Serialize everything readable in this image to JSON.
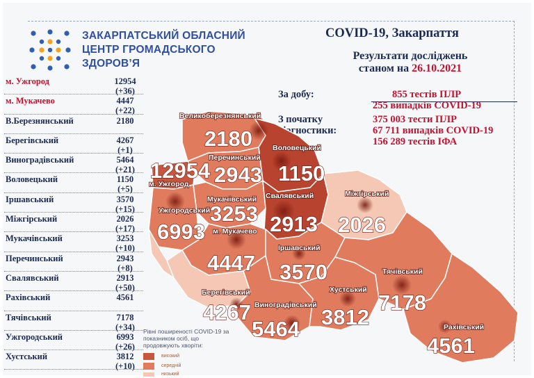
{
  "header": {
    "org_line1": "ЗАКАРПАТСЬКИЙ ОБЛАСНИЙ",
    "org_line2": "ЦЕНТР ГРОМАДСЬКОГО",
    "org_line3": "ЗДОРОВ’Я",
    "title": "COVID-19, Закарпаття",
    "subtitle_line1": "Результати досліджень",
    "subtitle_line2_prefix": "станом на",
    "date": "26.10.2021"
  },
  "districts_list": [
    {
      "name": "м. Ужгород",
      "value": "12954",
      "delta": "(+36)",
      "color": "#c8102e"
    },
    {
      "name": "м. Мукачево",
      "value": "4447",
      "delta": "(+22)",
      "color": "#c8102e"
    },
    {
      "name": "В.Березнянський",
      "value": "2180",
      "delta": "",
      "color": "#1b2a52"
    },
    {
      "name": "Берегівський",
      "value": "4267",
      "delta": "(+1)",
      "color": "#1b2a52"
    },
    {
      "name": "Виноградівський",
      "value": "5464",
      "delta": "(+21)",
      "color": "#1b2a52"
    },
    {
      "name": "Воловецький",
      "value": "1150",
      "delta": "(+5)",
      "color": "#1b2a52"
    },
    {
      "name": "Іршавський",
      "value": "3570",
      "delta": "(+15)",
      "color": "#1b2a52"
    },
    {
      "name": "Міжгірський",
      "value": "2026",
      "delta": "(+17)",
      "color": "#1b2a52"
    },
    {
      "name": "Мукачівський",
      "value": "3253",
      "delta": "(+10)",
      "color": "#1b2a52"
    },
    {
      "name": "Перечинський",
      "value": "2943",
      "delta": "(+8)",
      "color": "#1b2a52"
    },
    {
      "name": "Свалявський",
      "value": "2913",
      "delta": "(+50)",
      "color": "#1b2a52"
    },
    {
      "name": "Рахівський",
      "value": "4561",
      "delta": "",
      "color": "#1b2a52"
    },
    {
      "name": "Тячівський",
      "value": "7178",
      "delta": "(+34)",
      "color": "#1b2a52"
    },
    {
      "name": "Ужгородський",
      "value": "6993",
      "delta": "(+26)",
      "color": "#1b2a52"
    },
    {
      "name": "Хустський",
      "value": "3812",
      "delta": "(+10)",
      "color": "#1b2a52"
    }
  ],
  "stats": {
    "daily_label": "За добу:",
    "daily_tests": "855 тестів ПЛР",
    "daily_cases": "255 випадків COVID-19",
    "total_label_1": "З початку",
    "total_label_2": "діагностики:",
    "total_pcr": "375 003 тести ПЛР",
    "total_cases": "67 711 випадків COVID-19",
    "total_ifa": "156 289 тестів ІФА"
  },
  "map": {
    "colors": {
      "high": "#c8553d",
      "medium": "#e07b5d",
      "low": "#f4c8b4",
      "border": "#ffffff"
    },
    "regions": [
      {
        "label": "Великоберезнянський",
        "value": "2180",
        "level": "medium"
      },
      {
        "label": "Перечинський",
        "value": "2943",
        "level": "medium"
      },
      {
        "label": "Воловецький",
        "value": "1150",
        "level": "high"
      },
      {
        "label": "м. Ужгород",
        "value": "12954",
        "level": "high"
      },
      {
        "label": "Мукачівський",
        "value": "3253",
        "level": "medium"
      },
      {
        "label": "Ужгородський",
        "value": "6993",
        "level": "medium"
      },
      {
        "label": "Свалявський",
        "value": "2913",
        "level": "high"
      },
      {
        "label": "Міжгірський",
        "value": "2026",
        "level": "low"
      },
      {
        "label": "м. Мукачево",
        "value": "4447",
        "level": "medium"
      },
      {
        "label": "Іршавський",
        "value": "3570",
        "level": "medium"
      },
      {
        "label": "Берегівський",
        "value": "4267",
        "level": "low"
      },
      {
        "label": "Виноградівський",
        "value": "5464",
        "level": "medium"
      },
      {
        "label": "Хустський",
        "value": "3812",
        "level": "medium"
      },
      {
        "label": "Тячівський",
        "value": "7178",
        "level": "medium"
      },
      {
        "label": "Рахівський",
        "value": "4561",
        "level": "medium"
      }
    ]
  },
  "legend": {
    "text": "Рівні поширеності COVID-19 за показником осіб, що продовжують хворіти:",
    "high": "високий",
    "medium": "середній",
    "low": "низький"
  }
}
